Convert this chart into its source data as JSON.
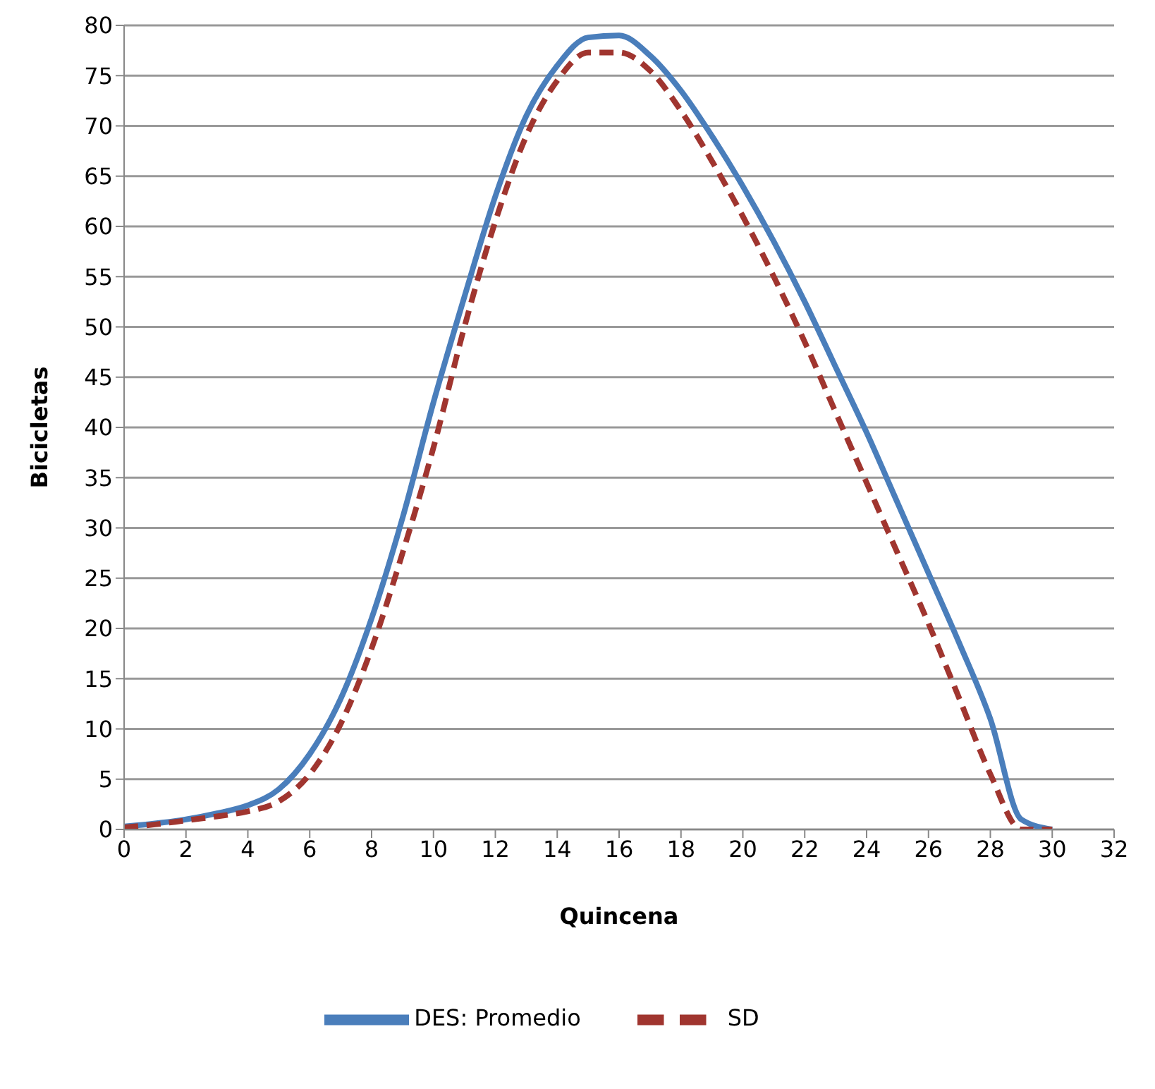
{
  "chart_data": {
    "type": "line",
    "xlabel": "Quincena",
    "ylabel": "Bicicletas",
    "x": [
      0,
      1,
      2,
      3,
      4,
      5,
      6,
      7,
      8,
      9,
      10,
      11,
      12,
      13,
      14,
      15,
      16,
      17,
      18,
      19,
      20,
      21,
      22,
      23,
      24,
      25,
      26,
      27,
      28,
      29,
      30
    ],
    "series": [
      {
        "name": "DES: Promedio",
        "color": "#4a7ebb",
        "line_style": "solid",
        "values": [
          0.3,
          0.6,
          1,
          1.6,
          2.4,
          4,
          7.5,
          13,
          21,
          31,
          42.5,
          53,
          63,
          71,
          76,
          78.8,
          79,
          77,
          73.5,
          69,
          64,
          58.5,
          52.5,
          46,
          39.5,
          32.5,
          25.5,
          18.5,
          11,
          1,
          0
        ]
      },
      {
        "name": "SD",
        "color": "#a0352f",
        "line_style": "dashed",
        "values": [
          0.2,
          0.5,
          0.9,
          1.3,
          1.8,
          2.8,
          5.5,
          10.5,
          18,
          27.5,
          38,
          50,
          60.5,
          69,
          74.5,
          77.3,
          77.3,
          75.5,
          71.5,
          66.5,
          61,
          55,
          48.5,
          41.5,
          34.5,
          27.5,
          20.5,
          13,
          5.5,
          0,
          0
        ]
      }
    ],
    "xlim": [
      0,
      32
    ],
    "xticks": [
      0,
      2,
      4,
      6,
      8,
      10,
      12,
      14,
      16,
      18,
      20,
      22,
      24,
      26,
      28,
      30,
      32
    ],
    "ylim": [
      0,
      80
    ],
    "yticks": [
      0,
      5,
      10,
      15,
      20,
      25,
      30,
      35,
      40,
      45,
      50,
      55,
      60,
      65,
      70,
      75,
      80
    ],
    "grid": "y",
    "legend": "bottom",
    "marker": "none"
  }
}
